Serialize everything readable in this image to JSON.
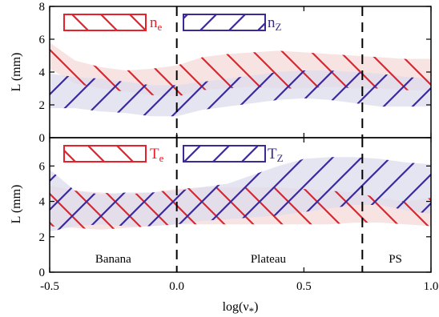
{
  "colors": {
    "electron": "#e8202a",
    "impurity": "#3b2a96",
    "electron_fill": "#f6dada",
    "impurity_fill": "#dcdcec",
    "axis": "#000000"
  },
  "shared_x": {
    "label": "log(ν*)",
    "label_base": "log(ν",
    "label_sub": "*",
    "label_close": ")",
    "xlim": [
      -0.5,
      1.0
    ],
    "ticks": [
      "-0.5",
      "0.0",
      "0.5",
      "1.0"
    ],
    "tick_values": [
      -0.5,
      0.0,
      0.5,
      1.0
    ],
    "boundaries": [
      0.0,
      0.73
    ],
    "regions": [
      {
        "label": "Banana",
        "x": -0.25
      },
      {
        "label": "Plateau",
        "x": 0.36
      },
      {
        "label": "PS",
        "x": 0.86
      }
    ]
  },
  "chart_data": [
    {
      "type": "area",
      "panel": "top",
      "ylabel": "L (mm)",
      "ylim": [
        0,
        8
      ],
      "yticks": [
        "0",
        "2",
        "4",
        "6",
        "8"
      ],
      "ytick_values": [
        0,
        2,
        4,
        6,
        8
      ],
      "legend_position": "top",
      "series": [
        {
          "name": "n_e",
          "legend_symbol": "n",
          "legend_sub": "e",
          "color_key": "electron",
          "hatch": "backslash",
          "x": [
            -0.5,
            -0.4,
            -0.3,
            -0.2,
            -0.1,
            0.0,
            0.1,
            0.2,
            0.3,
            0.4,
            0.5,
            0.6,
            0.7,
            0.8,
            0.9,
            1.0
          ],
          "lower": [
            4.2,
            3.3,
            3.0,
            2.8,
            2.6,
            2.5,
            2.9,
            3.0,
            3.1,
            3.0,
            3.0,
            3.1,
            3.0,
            3.0,
            2.9,
            2.9
          ],
          "upper": [
            5.8,
            4.7,
            4.3,
            4.1,
            4.2,
            4.4,
            4.9,
            5.1,
            5.2,
            5.3,
            5.2,
            5.1,
            5.0,
            4.9,
            4.8,
            4.8
          ]
        },
        {
          "name": "n_Z",
          "legend_symbol": "n",
          "legend_sub": "Z",
          "color_key": "impurity",
          "hatch": "slash",
          "x": [
            -0.5,
            -0.4,
            -0.3,
            -0.2,
            -0.1,
            0.0,
            0.1,
            0.2,
            0.3,
            0.4,
            0.5,
            0.6,
            0.7,
            0.8,
            0.9,
            1.0
          ],
          "lower": [
            1.8,
            1.8,
            1.6,
            1.5,
            1.3,
            1.3,
            1.7,
            1.9,
            2.1,
            2.3,
            2.4,
            2.3,
            2.1,
            1.9,
            1.9,
            1.9
          ],
          "upper": [
            3.9,
            3.7,
            3.6,
            3.4,
            3.2,
            3.2,
            3.4,
            3.6,
            3.8,
            4.0,
            4.1,
            4.1,
            4.0,
            3.9,
            3.7,
            3.6
          ]
        }
      ]
    },
    {
      "type": "area",
      "panel": "bottom",
      "ylabel": "L (mm)",
      "ylim": [
        0,
        7.6
      ],
      "yticks": [
        "0",
        "2",
        "4",
        "6"
      ],
      "ytick_values": [
        0,
        2,
        4,
        6
      ],
      "legend_position": "top",
      "series": [
        {
          "name": "T_e",
          "legend_symbol": "T",
          "legend_sub": "e",
          "color_key": "electron",
          "hatch": "backslash",
          "x": [
            -0.5,
            -0.4,
            -0.3,
            -0.2,
            -0.1,
            0.0,
            0.1,
            0.2,
            0.3,
            0.4,
            0.5,
            0.6,
            0.7,
            0.8,
            0.9,
            1.0
          ],
          "lower": [
            2.6,
            2.5,
            2.4,
            2.5,
            2.6,
            2.7,
            2.7,
            2.7,
            2.7,
            2.7,
            2.7,
            2.7,
            2.8,
            2.8,
            2.7,
            2.6
          ],
          "upper": [
            4.9,
            4.6,
            4.5,
            4.4,
            4.5,
            4.7,
            4.8,
            4.8,
            4.8,
            4.8,
            4.7,
            4.6,
            4.5,
            4.2,
            4.0,
            4.2
          ]
        },
        {
          "name": "T_Z",
          "legend_symbol": "T",
          "legend_sub": "Z",
          "color_key": "impurity",
          "hatch": "slash",
          "x": [
            -0.5,
            -0.4,
            -0.3,
            -0.2,
            -0.1,
            0.0,
            0.1,
            0.2,
            0.3,
            0.4,
            0.5,
            0.6,
            0.7,
            0.8,
            0.9,
            1.0
          ],
          "lower": [
            2.3,
            2.6,
            2.7,
            2.6,
            2.6,
            2.7,
            2.9,
            3.0,
            3.1,
            3.2,
            3.4,
            3.6,
            3.8,
            3.8,
            3.5,
            3.3
          ],
          "upper": [
            5.8,
            4.6,
            4.4,
            4.5,
            4.5,
            4.6,
            4.8,
            5.0,
            5.5,
            6.0,
            6.4,
            6.5,
            6.5,
            6.4,
            6.2,
            6.1
          ]
        }
      ]
    }
  ]
}
